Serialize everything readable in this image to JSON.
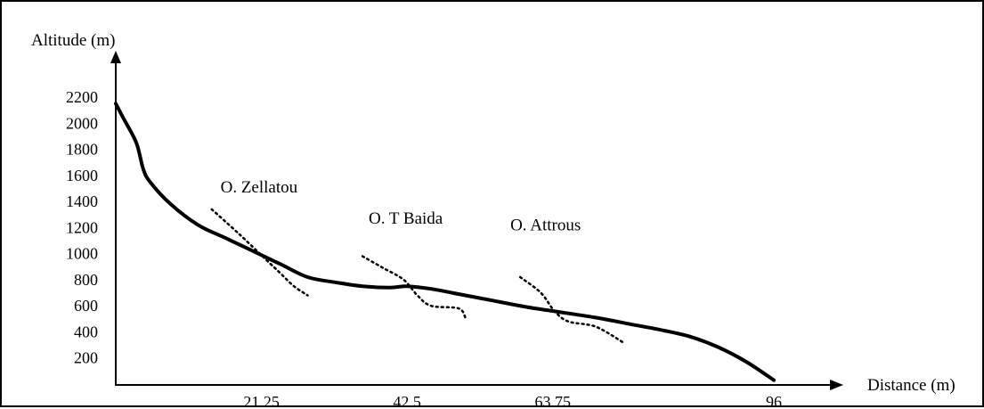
{
  "chart_data": {
    "type": "line",
    "title": "",
    "xlabel": "Distance (m)",
    "ylabel": "Altitude (m)",
    "xlim": [
      0,
      96
    ],
    "ylim": [
      0,
      2200
    ],
    "xticks": [
      {
        "value": 21.25,
        "label": "21.25"
      },
      {
        "value": 42.5,
        "label": "42.5"
      },
      {
        "value": 63.75,
        "label": "63.75"
      },
      {
        "value": 96,
        "label": "96"
      }
    ],
    "yticks": [
      200,
      400,
      600,
      800,
      1000,
      1200,
      1400,
      1600,
      1800,
      2000,
      2200
    ],
    "grid": false,
    "legend": "none",
    "series": [
      {
        "style": "solid",
        "points": [
          [
            0,
            2150
          ],
          [
            1,
            2050
          ],
          [
            3,
            1850
          ],
          [
            4,
            1650
          ],
          [
            5,
            1550
          ],
          [
            8,
            1380
          ],
          [
            12,
            1220
          ],
          [
            16,
            1120
          ],
          [
            20,
            1020
          ],
          [
            24,
            920
          ],
          [
            28,
            820
          ],
          [
            32,
            780
          ],
          [
            36,
            750
          ],
          [
            40,
            740
          ],
          [
            42.5,
            750
          ],
          [
            46,
            730
          ],
          [
            50,
            690
          ],
          [
            55,
            640
          ],
          [
            60,
            590
          ],
          [
            65,
            550
          ],
          [
            70,
            510
          ],
          [
            75,
            460
          ],
          [
            80,
            410
          ],
          [
            84,
            360
          ],
          [
            88,
            280
          ],
          [
            92,
            170
          ],
          [
            96,
            30
          ]
        ]
      }
    ],
    "annotations": [
      {
        "text": "O. Zellatou",
        "label_x": 20.9,
        "label_y": 1470,
        "crossing": [
          [
            14,
            1340
          ],
          [
            18,
            1150
          ],
          [
            22,
            950
          ],
          [
            24,
            850
          ],
          [
            26,
            750
          ],
          [
            28,
            680
          ]
        ]
      },
      {
        "text": "O. T Baida",
        "label_x": 42.3,
        "label_y": 1230,
        "crossing": [
          [
            36,
            980
          ],
          [
            39,
            890
          ],
          [
            42,
            800
          ],
          [
            44,
            680
          ],
          [
            46,
            600
          ],
          [
            50,
            580
          ],
          [
            51,
            510
          ]
        ]
      },
      {
        "text": "O. Attrous",
        "label_x": 62.7,
        "label_y": 1180,
        "crossing": [
          [
            59,
            820
          ],
          [
            62,
            700
          ],
          [
            64,
            560
          ],
          [
            66,
            480
          ],
          [
            70,
            440
          ],
          [
            74,
            320
          ]
        ]
      }
    ]
  }
}
